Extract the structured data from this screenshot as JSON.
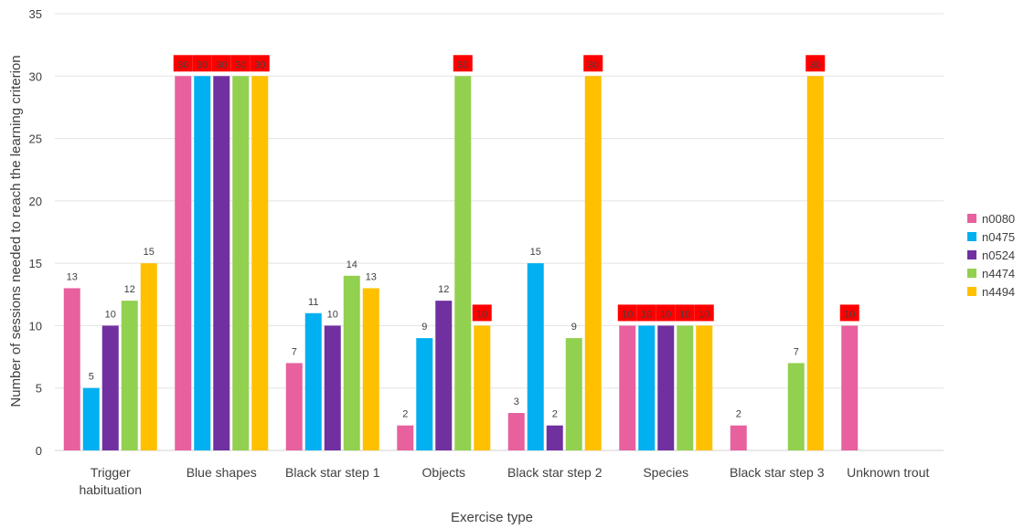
{
  "chart_data": {
    "type": "bar",
    "title": "",
    "xlabel": "Exercise type",
    "ylabel": "Number of sessions  needed to reach the learning criterion",
    "ylim": [
      0,
      35
    ],
    "yticks": [
      0,
      5,
      10,
      15,
      20,
      25,
      30,
      35
    ],
    "grid": true,
    "legend_position": "right",
    "categories": [
      "Trigger habituation",
      "Blue shapes",
      "Black star step 1",
      "Objects",
      "Black star step 2",
      "Species",
      "Black star step 3",
      "Unknown trout"
    ],
    "category_label_lines": [
      [
        "Trigger",
        "habituation"
      ],
      [
        "Blue shapes"
      ],
      [
        "Black star step 1"
      ],
      [
        "Objects"
      ],
      [
        "Black star step 2"
      ],
      [
        "Species"
      ],
      [
        "Black star step 3"
      ],
      [
        "Unknown trout"
      ]
    ],
    "series": [
      {
        "name": "n0080",
        "color": "#E8609E",
        "values": [
          13,
          30,
          7,
          2,
          3,
          10,
          2,
          10
        ]
      },
      {
        "name": "n0475",
        "color": "#00B0F0",
        "values": [
          5,
          30,
          11,
          9,
          15,
          10,
          null,
          null
        ]
      },
      {
        "name": "n0524",
        "color": "#7030A0",
        "values": [
          10,
          30,
          10,
          12,
          2,
          10,
          null,
          null
        ]
      },
      {
        "name": "n4474",
        "color": "#92D050",
        "values": [
          12,
          30,
          14,
          30,
          9,
          10,
          7,
          null
        ]
      },
      {
        "name": "n4494",
        "color": "#FFC000",
        "values": [
          15,
          30,
          13,
          10,
          30,
          10,
          30,
          null
        ]
      }
    ],
    "highlighted_values": [
      30,
      10
    ],
    "highlight_categories": [
      "Blue shapes",
      "Objects",
      "Black star step 2",
      "Species",
      "Black star step 3",
      "Unknown trout"
    ],
    "highlight_color": "#FF0000"
  }
}
